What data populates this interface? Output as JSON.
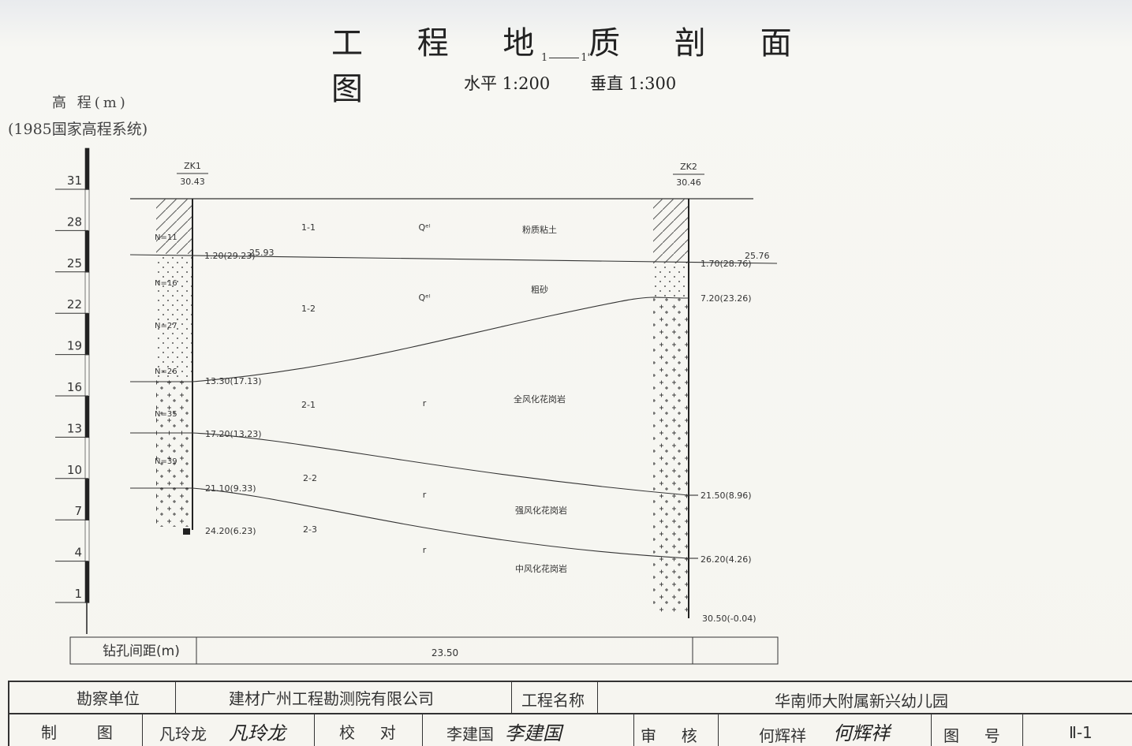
{
  "title": "工 程 地 质 剖 面 图",
  "section": {
    "left": "1",
    "right": "1'"
  },
  "scale": {
    "horizontal": "水平 1:200",
    "vertical": "垂直 1:300"
  },
  "elevation_axis": {
    "label": "高 程(m)",
    "system": "(1985国家高程系统)",
    "ticks": [
      "31",
      "28",
      "25",
      "22",
      "19",
      "16",
      "13",
      "10",
      "7",
      "4",
      "1"
    ]
  },
  "boreholes": [
    {
      "id": "ZK1",
      "elevation": "30.43",
      "n_values": [
        "N=11",
        "N=16",
        "N=27",
        "N=26",
        "N=35",
        "N=39"
      ],
      "depth_labels": [
        "1.20(29.23)",
        "25.93",
        "13.30(17.13)",
        "17.20(13.23)",
        "21.10(9.33)",
        "24.20(6.23)"
      ]
    },
    {
      "id": "ZK2",
      "elevation": "30.46",
      "depth_labels": [
        "25.76",
        "1.70(28.76)",
        "7.20(23.26)",
        "21.50(8.96)",
        "26.20(4.26)",
        "30.50(-0.04)"
      ]
    }
  ],
  "layers": [
    {
      "code": "1-1",
      "age": "Qᵉˡ",
      "name": "粉质粘土"
    },
    {
      "code": "1-2",
      "age": "Qᵉˡ",
      "name": "粗砂"
    },
    {
      "code": "2-1",
      "age": "r",
      "name": "全风化花岗岩"
    },
    {
      "code": "2-2",
      "age": "r",
      "name": "强风化花岗岩"
    },
    {
      "code": "2-3",
      "age": "r",
      "name": "中风化花岗岩"
    }
  ],
  "spacing": {
    "label": "钻孔间距(m)",
    "value": "23.50"
  },
  "titleblock": {
    "survey_unit_label": "勘察单位",
    "survey_unit": "建材广州工程勘测院有限公司",
    "project_name_label": "工程名称",
    "project_name": "华南师大附属新兴幼儿园",
    "drawn_label": "制        图",
    "drawn_by": "凡玲龙",
    "checked_label": "校     对",
    "checked_by": "李建国",
    "reviewed_label": "审     核",
    "reviewed_by": "何辉祥",
    "drawing_no_label": "图     号",
    "drawing_no": "Ⅱ-1"
  }
}
